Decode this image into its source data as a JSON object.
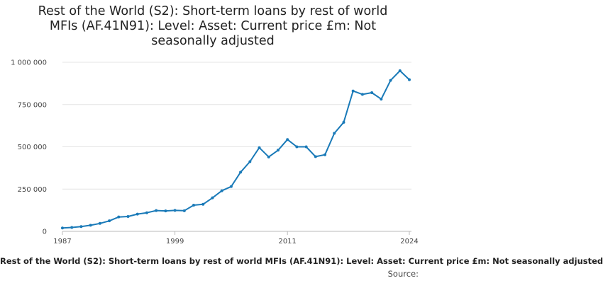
{
  "chart_data": {
    "type": "line",
    "title_lines": [
      "Rest of the World (S2): Short-term loans by rest of world",
      "MFIs (AF.41N91): Level: Asset: Current price £m: Not",
      "seasonally adjusted"
    ],
    "caption": "Rest of the World (S2): Short-term loans by rest of world MFIs (AF.41N91): Level: Asset: Current price £m: Not seasonally adjusted",
    "source_label": "Source:",
    "xlabel": "",
    "ylabel": "",
    "xlim": [
      1987,
      2024
    ],
    "ylim": [
      0,
      1000000
    ],
    "y_ticks": [
      0,
      250000,
      500000,
      750000,
      1000000
    ],
    "y_tick_labels": [
      "0",
      "250 000",
      "500 000",
      "750 000",
      "1 000 000"
    ],
    "x_ticks": [
      1987,
      1999,
      2011,
      2024
    ],
    "x_tick_labels": [
      "1987",
      "1999",
      "2011",
      "2024"
    ],
    "grid": "horizontal",
    "line_color": "#1a7ab8",
    "grid_color": "#e4e4e4",
    "series": [
      {
        "x": [
          1987,
          1988,
          1989,
          1990,
          1991,
          1992,
          1993,
          1994,
          1995,
          1996,
          1997,
          1998,
          1999,
          2000,
          2001,
          2002,
          2003,
          2004,
          2005,
          2006,
          2007,
          2008,
          2009,
          2010,
          2011,
          2012,
          2013,
          2014,
          2015,
          2016,
          2017,
          2018,
          2019,
          2020,
          2021,
          2022,
          2023,
          2024
        ],
        "values": [
          20000,
          23000,
          28000,
          36000,
          47000,
          62000,
          85000,
          88000,
          102000,
          110000,
          123000,
          121000,
          124000,
          122000,
          155000,
          160000,
          198000,
          240000,
          265000,
          350000,
          412000,
          495000,
          440000,
          480000,
          543000,
          500000,
          500000,
          442000,
          453000,
          580000,
          645000,
          830000,
          810000,
          820000,
          782000,
          893000,
          950000,
          897000
        ]
      }
    ]
  }
}
